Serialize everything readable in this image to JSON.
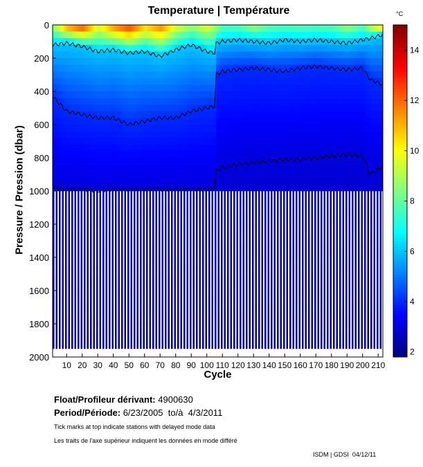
{
  "chart_data": {
    "type": "heatmap",
    "title": "Temperature | Température",
    "xlabel": "Cycle",
    "ylabel": "Pressure / Pression (dbar)",
    "xlim": [
      1,
      213
    ],
    "ylim": [
      2000,
      0
    ],
    "xticks": [
      10,
      20,
      30,
      40,
      50,
      60,
      70,
      80,
      90,
      100,
      110,
      120,
      130,
      140,
      150,
      160,
      170,
      180,
      190,
      200,
      210
    ],
    "yticks": [
      0,
      200,
      400,
      600,
      800,
      1000,
      1200,
      1400,
      1600,
      1800,
      2000
    ],
    "colorbar": {
      "unit": "°C",
      "range": [
        1.8,
        15
      ],
      "ticks": [
        2,
        4,
        6,
        8,
        10,
        12,
        14
      ],
      "colormap": "jet"
    },
    "contour_levels": [
      2,
      4,
      6
    ],
    "sample_cycles": [
      1,
      10,
      20,
      30,
      40,
      50,
      60,
      70,
      80,
      90,
      100,
      105,
      106,
      110,
      120,
      130,
      140,
      150,
      160,
      170,
      180,
      190,
      200,
      205,
      213
    ],
    "surface_temp": [
      9,
      12,
      13,
      10,
      12,
      13,
      11,
      12,
      10,
      9,
      10,
      9,
      9,
      8,
      8,
      9,
      8,
      8,
      8,
      8,
      8,
      9,
      8,
      10,
      12
    ],
    "depth_6C": [
      120,
      110,
      130,
      160,
      150,
      170,
      160,
      190,
      150,
      120,
      160,
      170,
      110,
      100,
      90,
      100,
      110,
      90,
      100,
      90,
      100,
      110,
      90,
      80,
      60
    ],
    "depth_4C": [
      430,
      520,
      540,
      560,
      560,
      600,
      580,
      560,
      560,
      520,
      500,
      490,
      300,
      280,
      270,
      260,
      270,
      280,
      260,
      250,
      260,
      270,
      260,
      330,
      360
    ],
    "depth_3C": [
      980,
      990,
      990,
      1000,
      990,
      990,
      990,
      990,
      990,
      990,
      990,
      980,
      880,
      860,
      840,
      830,
      820,
      810,
      810,
      800,
      790,
      780,
      790,
      900,
      850
    ],
    "deep_temp_2000": 2.3,
    "profile_max_pressure_even_cycles": 1000,
    "profile_max_pressure_odd_cycles": 1950
  },
  "info": {
    "float_label": "Float/Profileur dérivant:",
    "float_id": "4900630",
    "period_label": "Period/Période:",
    "period_value": "6/23/2005  to/à  4/3/2011",
    "note_en": "Tick marks at top indicate stations with delayed mode data",
    "note_fr": "Les traits de l'axe supérieur indiquent les données en mode différé",
    "credit": "ISDM | GDSI  04/12/11"
  }
}
